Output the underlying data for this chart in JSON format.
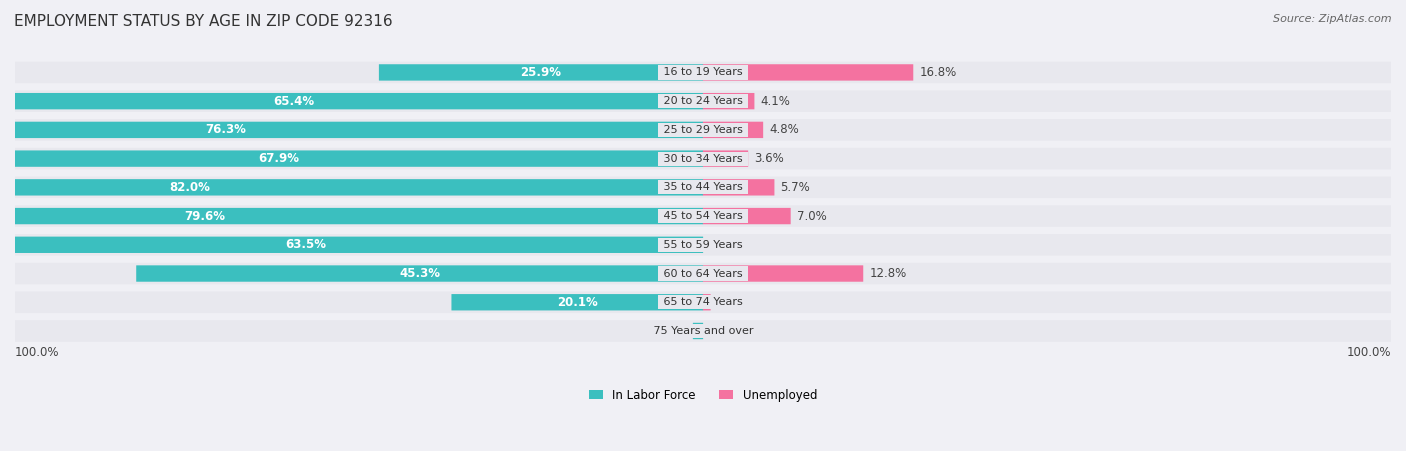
{
  "title": "EMPLOYMENT STATUS BY AGE IN ZIP CODE 92316",
  "source": "Source: ZipAtlas.com",
  "categories": [
    "16 to 19 Years",
    "20 to 24 Years",
    "25 to 29 Years",
    "30 to 34 Years",
    "35 to 44 Years",
    "45 to 54 Years",
    "55 to 59 Years",
    "60 to 64 Years",
    "65 to 74 Years",
    "75 Years and over"
  ],
  "in_labor_force": [
    25.9,
    65.4,
    76.3,
    67.9,
    82.0,
    79.6,
    63.5,
    45.3,
    20.1,
    0.8
  ],
  "unemployed": [
    16.8,
    4.1,
    4.8,
    3.6,
    5.7,
    7.0,
    0.0,
    12.8,
    0.6,
    0.0
  ],
  "labor_color": "#3bbfbf",
  "unemployed_color": "#f472a0",
  "bg_color": "#f0f0f5",
  "bar_bg_color": "#e8e8ee",
  "title_fontsize": 11,
  "label_fontsize": 8.5,
  "source_fontsize": 8,
  "bar_height": 0.55,
  "max_value": 100.0,
  "center_label_color_dark": "#333333",
  "center_label_color_light": "#ffffff"
}
